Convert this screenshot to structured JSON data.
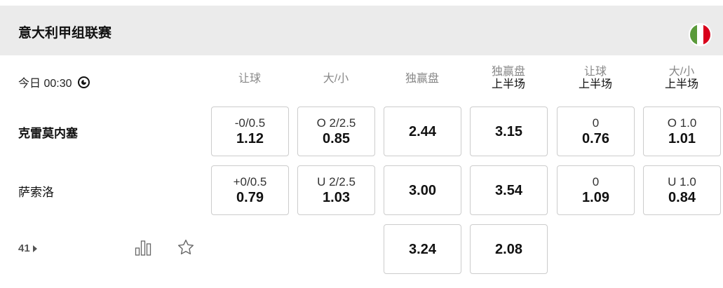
{
  "league": {
    "title": "意大利甲组联赛",
    "flag_colors": [
      "#5a9a3a",
      "#ffffff",
      "#d9001b"
    ]
  },
  "match": {
    "time": "今日 00:30",
    "more_count": "41"
  },
  "columns": [
    {
      "label": "让球",
      "sub": ""
    },
    {
      "label": "大/小",
      "sub": ""
    },
    {
      "label": "独赢盘",
      "sub": ""
    },
    {
      "label": "独赢盘",
      "sub": "上半场"
    },
    {
      "label": "让球",
      "sub": "上半场"
    },
    {
      "label": "大/小",
      "sub": "上半场"
    }
  ],
  "rows": [
    {
      "team": "克雷莫内塞",
      "bold": true,
      "cells": [
        {
          "line": "-0/0.5",
          "odds": "1.12"
        },
        {
          "line": "O 2/2.5",
          "odds": "0.85"
        },
        {
          "line": "",
          "odds": "2.44"
        },
        {
          "line": "",
          "odds": "3.15"
        },
        {
          "line": "0",
          "odds": "0.76"
        },
        {
          "line": "O 1.0",
          "odds": "1.01"
        }
      ]
    },
    {
      "team": "萨索洛",
      "bold": false,
      "cells": [
        {
          "line": "+0/0.5",
          "odds": "0.79"
        },
        {
          "line": "U 2/2.5",
          "odds": "1.03"
        },
        {
          "line": "",
          "odds": "3.00"
        },
        {
          "line": "",
          "odds": "3.54"
        },
        {
          "line": "0",
          "odds": "1.09"
        },
        {
          "line": "U 1.0",
          "odds": "0.84"
        }
      ]
    },
    {
      "team": "",
      "cells": [
        null,
        null,
        {
          "line": "",
          "odds": "3.24"
        },
        {
          "line": "",
          "odds": "2.08"
        },
        null,
        null
      ]
    }
  ]
}
